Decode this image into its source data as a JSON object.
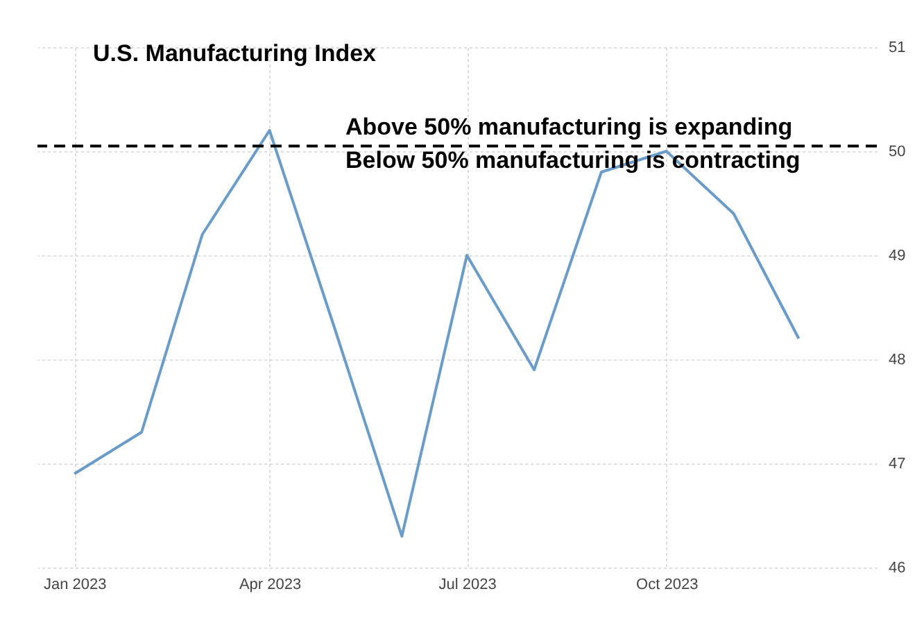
{
  "chart_data": {
    "type": "line",
    "title": "U.S. Manufacturing Index",
    "annotations": [
      "Above 50% manufacturing is expanding",
      "Below 50% manufacturing is contracting"
    ],
    "x": [
      "2023-01",
      "2023-02",
      "2023-03",
      "2023-04",
      "2023-05",
      "2023-06",
      "2023-07",
      "2023-08",
      "2023-09",
      "2023-10",
      "2023-11",
      "2023-12"
    ],
    "series": [
      {
        "color": "#6b9bc8",
        "values": [
          46.9,
          47.3,
          49.2,
          50.2,
          48.3,
          46.3,
          49.0,
          47.9,
          49.8,
          50.0,
          49.4,
          48.2
        ]
      }
    ],
    "xlim": [
      "2022-12-15",
      "2024-01-06"
    ],
    "xticks": [
      {
        "value": "2023-01",
        "label": "Jan 2023"
      },
      {
        "value": "2023-04",
        "label": "Apr 2023"
      },
      {
        "value": "2023-07",
        "label": "Jul 2023"
      },
      {
        "value": "2023-10",
        "label": "Oct 2023"
      }
    ],
    "ylim": [
      46,
      51
    ],
    "yticks": [
      46,
      47,
      48,
      49,
      50,
      51
    ],
    "ref_lines": [
      {
        "axis": "y",
        "value": 50.05,
        "color": "#000000",
        "line_style": "dashed"
      }
    ],
    "grid": true,
    "marker": "none",
    "line_style": "solid"
  }
}
